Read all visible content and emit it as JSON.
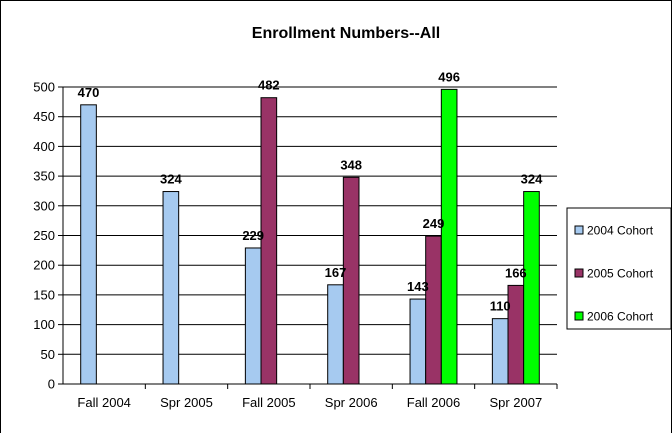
{
  "chart_data": {
    "type": "bar",
    "title": "Enrollment Numbers--All",
    "xlabel": "",
    "ylabel": "",
    "categories": [
      "Fall 2004",
      "Spr 2005",
      "Fall 2005",
      "Spr 2006",
      "Fall 2006",
      "Spr 2007"
    ],
    "yticks": [
      "0",
      "50",
      "100",
      "150",
      "200",
      "250",
      "300",
      "350",
      "400",
      "450",
      "500"
    ],
    "ylim": [
      0,
      500
    ],
    "grid": true,
    "legend_position": "right",
    "series": [
      {
        "name": "2004 Cohort",
        "color": "#a6caf0",
        "values": [
          470,
          324,
          229,
          167,
          143,
          110
        ]
      },
      {
        "name": "2005 Cohort",
        "color": "#993366",
        "values": [
          null,
          null,
          482,
          348,
          249,
          166
        ]
      },
      {
        "name": "2006 Cohort",
        "color": "#00ff00",
        "values": [
          null,
          null,
          null,
          null,
          496,
          324
        ]
      }
    ]
  }
}
